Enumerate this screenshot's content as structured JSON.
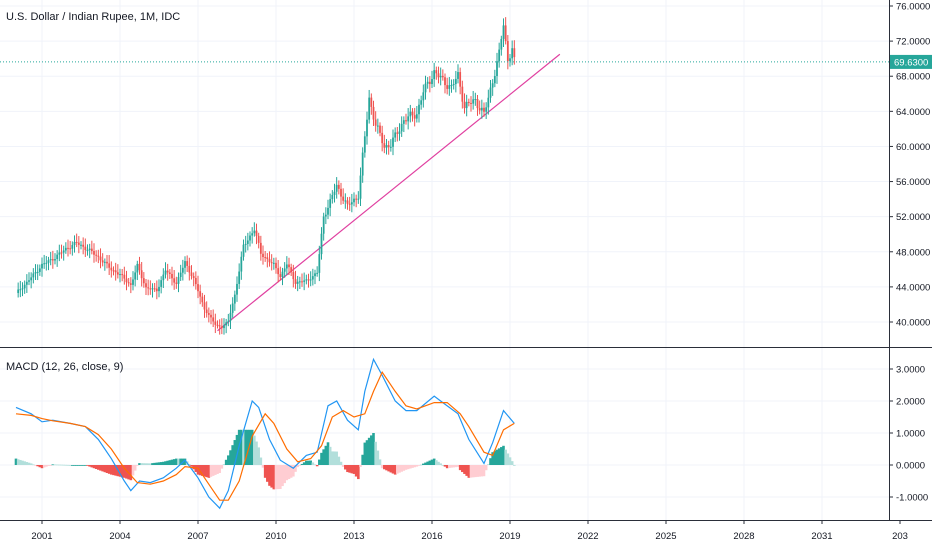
{
  "chart_data": [
    {
      "type": "candlestick",
      "title": "U.S. Dollar / Indian Rupee, 1M, IDC",
      "ylim": [
        37.5,
        77
      ],
      "y_ticks": [
        "76.0000",
        "72.0000",
        "68.0000",
        "64.0000",
        "60.0000",
        "56.0000",
        "52.0000",
        "48.0000",
        "44.0000",
        "40.0000"
      ],
      "current_price": "69.6300",
      "colors": {
        "up": "#26a69a",
        "down": "#ef5350",
        "trendline": "#e040a0",
        "price_line": "#26a69a"
      },
      "close_path": [
        [
          "2000-01",
          43.3
        ],
        [
          "2000-06",
          44.5
        ],
        [
          "2001-01",
          46.5
        ],
        [
          "2001-06",
          47.2
        ],
        [
          "2002-01",
          48.5
        ],
        [
          "2002-05",
          49.0
        ],
        [
          "2002-10",
          48.3
        ],
        [
          "2003-03",
          47.4
        ],
        [
          "2003-09",
          46.0
        ],
        [
          "2004-01",
          45.4
        ],
        [
          "2004-06",
          44.2
        ],
        [
          "2004-09",
          46.4
        ],
        [
          "2005-01",
          43.9
        ],
        [
          "2005-06",
          43.6
        ],
        [
          "2005-10",
          45.9
        ],
        [
          "2006-03",
          44.4
        ],
        [
          "2006-07",
          46.8
        ],
        [
          "2006-11",
          44.9
        ],
        [
          "2007-04",
          41.5
        ],
        [
          "2007-09",
          39.7
        ],
        [
          "2007-12",
          39.4
        ],
        [
          "2008-03",
          40.1
        ],
        [
          "2008-06",
          43.1
        ],
        [
          "2008-10",
          48.6
        ],
        [
          "2009-03",
          50.6
        ],
        [
          "2009-06",
          47.8
        ],
        [
          "2009-12",
          46.5
        ],
        [
          "2010-03",
          45.2
        ],
        [
          "2010-06",
          46.6
        ],
        [
          "2010-10",
          44.5
        ],
        [
          "2011-03",
          44.7
        ],
        [
          "2011-08",
          45.6
        ],
        [
          "2011-11",
          52.0
        ],
        [
          "2012-05",
          55.5
        ],
        [
          "2012-10",
          53.2
        ],
        [
          "2013-03",
          54.4
        ],
        [
          "2013-08",
          65.5
        ],
        [
          "2013-11",
          62.5
        ],
        [
          "2014-03",
          60.0
        ],
        [
          "2014-06",
          60.2
        ],
        [
          "2014-12",
          63.0
        ],
        [
          "2015-06",
          63.8
        ],
        [
          "2015-09",
          66.2
        ],
        [
          "2016-02",
          68.5
        ],
        [
          "2016-06",
          67.5
        ],
        [
          "2016-10",
          66.7
        ],
        [
          "2017-01",
          68.1
        ],
        [
          "2017-04",
          64.5
        ],
        [
          "2017-09",
          65.3
        ],
        [
          "2018-01",
          63.6
        ],
        [
          "2018-05",
          67.5
        ],
        [
          "2018-08",
          70.5
        ],
        [
          "2018-10",
          74.0
        ],
        [
          "2018-12",
          69.8
        ],
        [
          "2019-02",
          71.2
        ],
        [
          "2019-03",
          69.6
        ]
      ],
      "trendline": [
        [
          "2007-10",
          39.0
        ],
        [
          "2020-12",
          70.5
        ]
      ]
    },
    {
      "type": "macd",
      "title": "MACD (12, 26, close, 9)",
      "ylim": [
        -1.75,
        3.6
      ],
      "y_ticks": [
        "3.0000",
        "2.0000",
        "1.0000",
        "0.0000",
        "-1.0000"
      ],
      "colors": {
        "macd": "#2196f3",
        "signal": "#ff6d00",
        "hist_up_strong": "#26a69a",
        "hist_up_weak": "#b2dfdb",
        "hist_down_strong": "#ef5350",
        "hist_down_weak": "#ffcdd2"
      },
      "macd_path": [
        [
          "2000-01",
          1.8
        ],
        [
          "2000-08",
          1.6
        ],
        [
          "2001-01",
          1.35
        ],
        [
          "2001-06",
          1.4
        ],
        [
          "2002-02",
          1.3
        ],
        [
          "2002-09",
          1.2
        ],
        [
          "2003-03",
          0.8
        ],
        [
          "2003-09",
          0.2
        ],
        [
          "2004-03",
          -0.5
        ],
        [
          "2004-06",
          -0.8
        ],
        [
          "2004-10",
          -0.5
        ],
        [
          "2005-03",
          -0.55
        ],
        [
          "2005-09",
          -0.4
        ],
        [
          "2006-03",
          -0.1
        ],
        [
          "2006-07",
          0.15
        ],
        [
          "2007-01",
          -0.4
        ],
        [
          "2007-06",
          -1.0
        ],
        [
          "2007-11",
          -1.35
        ],
        [
          "2008-03",
          -0.8
        ],
        [
          "2008-08",
          0.6
        ],
        [
          "2009-02",
          2.0
        ],
        [
          "2009-05",
          1.8
        ],
        [
          "2009-10",
          0.8
        ],
        [
          "2010-03",
          0.15
        ],
        [
          "2010-09",
          -0.1
        ],
        [
          "2011-03",
          0.3
        ],
        [
          "2011-08",
          0.4
        ],
        [
          "2012-01",
          1.85
        ],
        [
          "2012-05",
          2.0
        ],
        [
          "2012-10",
          1.4
        ],
        [
          "2013-03",
          1.1
        ],
        [
          "2013-06",
          2.3
        ],
        [
          "2013-10",
          3.3
        ],
        [
          "2014-02",
          2.8
        ],
        [
          "2014-08",
          2.0
        ],
        [
          "2015-01",
          1.7
        ],
        [
          "2015-06",
          1.7
        ],
        [
          "2016-02",
          2.15
        ],
        [
          "2016-06",
          1.95
        ],
        [
          "2017-01",
          1.6
        ],
        [
          "2017-06",
          0.8
        ],
        [
          "2018-01",
          0.05
        ],
        [
          "2018-05",
          0.7
        ],
        [
          "2018-10",
          1.7
        ],
        [
          "2019-03",
          1.3
        ]
      ],
      "signal_path": [
        [
          "2000-01",
          1.6
        ],
        [
          "2000-08",
          1.55
        ],
        [
          "2001-01",
          1.45
        ],
        [
          "2001-06",
          1.38
        ],
        [
          "2002-02",
          1.3
        ],
        [
          "2002-09",
          1.2
        ],
        [
          "2003-03",
          0.95
        ],
        [
          "2003-09",
          0.5
        ],
        [
          "2004-03",
          -0.1
        ],
        [
          "2004-09",
          -0.55
        ],
        [
          "2005-03",
          -0.6
        ],
        [
          "2005-09",
          -0.5
        ],
        [
          "2006-03",
          -0.3
        ],
        [
          "2006-07",
          -0.05
        ],
        [
          "2007-01",
          -0.1
        ],
        [
          "2007-06",
          -0.6
        ],
        [
          "2007-11",
          -1.1
        ],
        [
          "2008-03",
          -1.1
        ],
        [
          "2008-08",
          -0.5
        ],
        [
          "2009-02",
          0.9
        ],
        [
          "2009-08",
          1.6
        ],
        [
          "2009-12",
          1.3
        ],
        [
          "2010-06",
          0.5
        ],
        [
          "2010-11",
          0.1
        ],
        [
          "2011-05",
          0.2
        ],
        [
          "2011-10",
          0.6
        ],
        [
          "2012-03",
          1.5
        ],
        [
          "2012-08",
          1.7
        ],
        [
          "2013-01",
          1.5
        ],
        [
          "2013-06",
          1.6
        ],
        [
          "2013-10",
          2.3
        ],
        [
          "2014-02",
          2.9
        ],
        [
          "2014-08",
          2.3
        ],
        [
          "2015-01",
          1.85
        ],
        [
          "2015-06",
          1.75
        ],
        [
          "2016-02",
          1.95
        ],
        [
          "2016-08",
          1.95
        ],
        [
          "2017-02",
          1.6
        ],
        [
          "2017-06",
          1.2
        ],
        [
          "2018-01",
          0.4
        ],
        [
          "2018-05",
          0.3
        ],
        [
          "2018-10",
          1.1
        ],
        [
          "2019-03",
          1.3
        ]
      ]
    }
  ],
  "x_axis": {
    "labels": [
      "2001",
      "2004",
      "2007",
      "2010",
      "2013",
      "2016",
      "2019",
      "2022",
      "2025",
      "2028",
      "2031",
      "203"
    ]
  }
}
